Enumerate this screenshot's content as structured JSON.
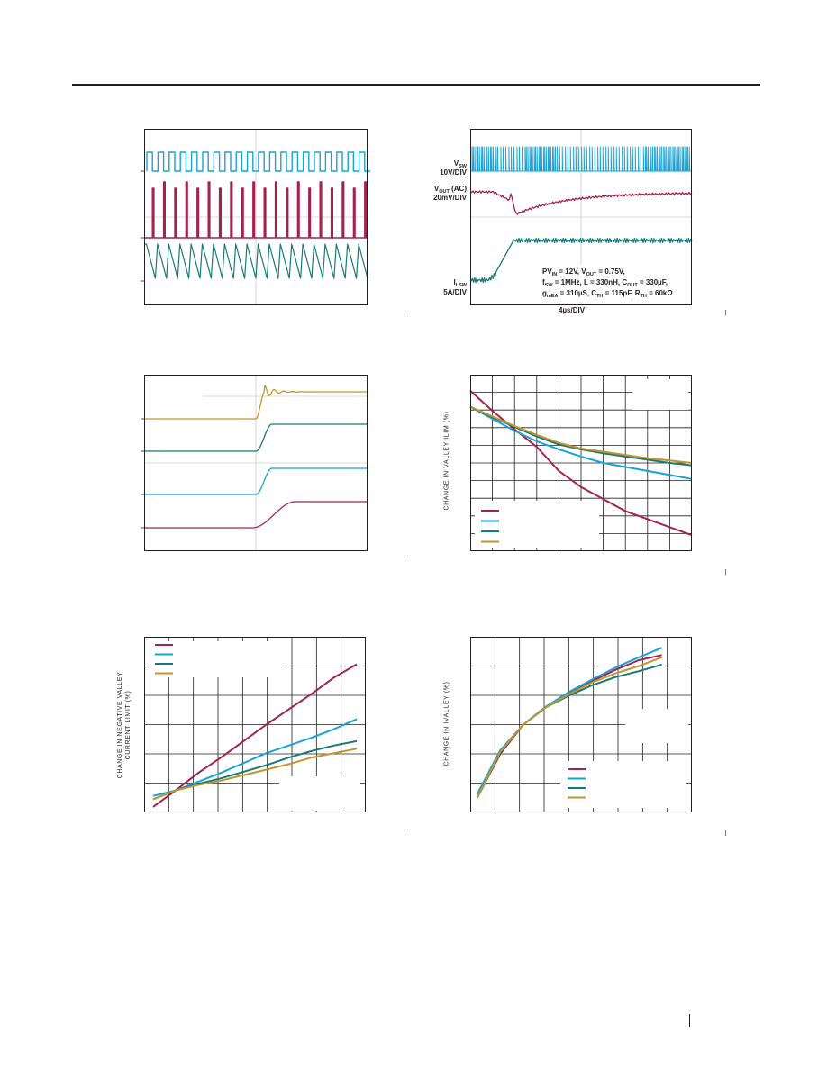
{
  "colors": {
    "magenta": "#a3234e",
    "cyan": "#1aa3d6",
    "teal": "#157a78",
    "gold": "#c4952e",
    "ink": "#231f20",
    "scope_grid": "#b7b7b7"
  },
  "chart_data": [
    {
      "type": "line",
      "subtype": "oscilloscope-capture",
      "grid": true,
      "traces": [
        {
          "color": "cyan",
          "kind": "square-wave",
          "cycles": 20
        },
        {
          "color": "magenta",
          "kind": "pulse-train",
          "pulses": 20
        },
        {
          "color": "teal",
          "kind": "sawtooth",
          "cycles": 20
        }
      ]
    },
    {
      "type": "line",
      "subtype": "oscilloscope-capture",
      "grid": true,
      "xlabel": "4µs/DIV",
      "channel_labels": [
        {
          "name": "V",
          "sub": "SW",
          "scale": "10V/DIV"
        },
        {
          "name": "V",
          "sub": "OUT",
          "suffix": " (AC)",
          "scale": "20mV/DIV"
        },
        {
          "name": "I",
          "sub": "LSW",
          "scale": "5A/DIV"
        }
      ],
      "conditions": {
        "line1": "PVIN = 12V, VOUT = 0.75V,",
        "line2": "fSW = 1MHz, L = 330nH, COUT = 330µF,",
        "line3": "gmEA = 310µS, CTH = 115pF, RTH = 60kΩ"
      },
      "traces": [
        {
          "color": "cyan",
          "kind": "switch-node"
        },
        {
          "color": "magenta",
          "kind": "vout-transient"
        },
        {
          "color": "teal",
          "kind": "load-step-current"
        }
      ]
    },
    {
      "type": "line",
      "subtype": "oscilloscope-capture",
      "grid": true,
      "traces": [
        {
          "color": "gold",
          "kind": "step-with-ringing"
        },
        {
          "color": "teal",
          "kind": "step"
        },
        {
          "color": "cyan",
          "kind": "step"
        },
        {
          "color": "magenta",
          "kind": "slow-ramp"
        }
      ]
    },
    {
      "type": "line",
      "grid": true,
      "ylabel": "CHANGE IN VALLEY ILIM (%)",
      "x": [
        0,
        1,
        2,
        3,
        4,
        5,
        6,
        7,
        8,
        9,
        10
      ],
      "series": [
        {
          "color": "magenta",
          "values": [
            12,
            9.5,
            7.2,
            5.0,
            2.0,
            0.0,
            -1.5,
            -3.0,
            -4.0,
            -5.0,
            -6.0
          ]
        },
        {
          "color": "cyan",
          "values": [
            10,
            8.5,
            7.0,
            5.7,
            4.7,
            3.8,
            3.0,
            2.5,
            2.0,
            1.5,
            1.0
          ]
        },
        {
          "color": "teal",
          "values": [
            10,
            8.7,
            7.5,
            6.3,
            5.3,
            4.7,
            4.2,
            3.8,
            3.4,
            3.0,
            2.7
          ]
        },
        {
          "color": "gold",
          "values": [
            10,
            8.8,
            7.6,
            6.5,
            5.5,
            4.8,
            4.4,
            4.0,
            3.6,
            3.3,
            3.0
          ]
        }
      ]
    },
    {
      "type": "line",
      "grid": true,
      "ylabel_line1": "CHANGE IN NEGATIVE VALLEY",
      "ylabel_line2": "CURRENT LIMIT (%)",
      "x": [
        0,
        1,
        2,
        3,
        4,
        5,
        6,
        7,
        8,
        9
      ],
      "series": [
        {
          "color": "magenta",
          "values": [
            -1.5,
            0,
            1.6,
            3.0,
            4.5,
            6.0,
            7.4,
            8.8,
            10.3,
            11.5
          ]
        },
        {
          "color": "cyan",
          "values": [
            -0.5,
            0,
            0.8,
            1.6,
            2.5,
            3.4,
            4.1,
            4.8,
            5.6,
            6.5
          ]
        },
        {
          "color": "teal",
          "values": [
            -0.8,
            0,
            0.6,
            1.1,
            1.7,
            2.3,
            3.0,
            3.6,
            4.1,
            4.5
          ]
        },
        {
          "color": "gold",
          "values": [
            -0.8,
            0,
            0.5,
            0.9,
            1.4,
            1.9,
            2.4,
            3.0,
            3.4,
            3.8
          ]
        }
      ]
    },
    {
      "type": "line",
      "grid": true,
      "ylabel": "CHANGE IN IVALLEY (%)",
      "x": [
        0,
        1,
        2,
        3,
        4,
        5,
        6,
        7,
        8
      ],
      "series": [
        {
          "color": "magenta",
          "values": [
            -12,
            -6,
            -2,
            0.5,
            2.3,
            4.0,
            5.5,
            6.8,
            7.5
          ]
        },
        {
          "color": "cyan",
          "values": [
            -11.5,
            -5.5,
            -2,
            0.5,
            2.5,
            4.2,
            5.8,
            7.2,
            8.5
          ]
        },
        {
          "color": "teal",
          "values": [
            -12,
            -5.8,
            -2,
            0.4,
            2.0,
            3.4,
            4.5,
            5.3,
            6.2
          ]
        },
        {
          "color": "gold",
          "values": [
            -12,
            -5.7,
            -2,
            0.4,
            2.2,
            3.8,
            5.0,
            6.0,
            7.2
          ]
        }
      ]
    }
  ]
}
